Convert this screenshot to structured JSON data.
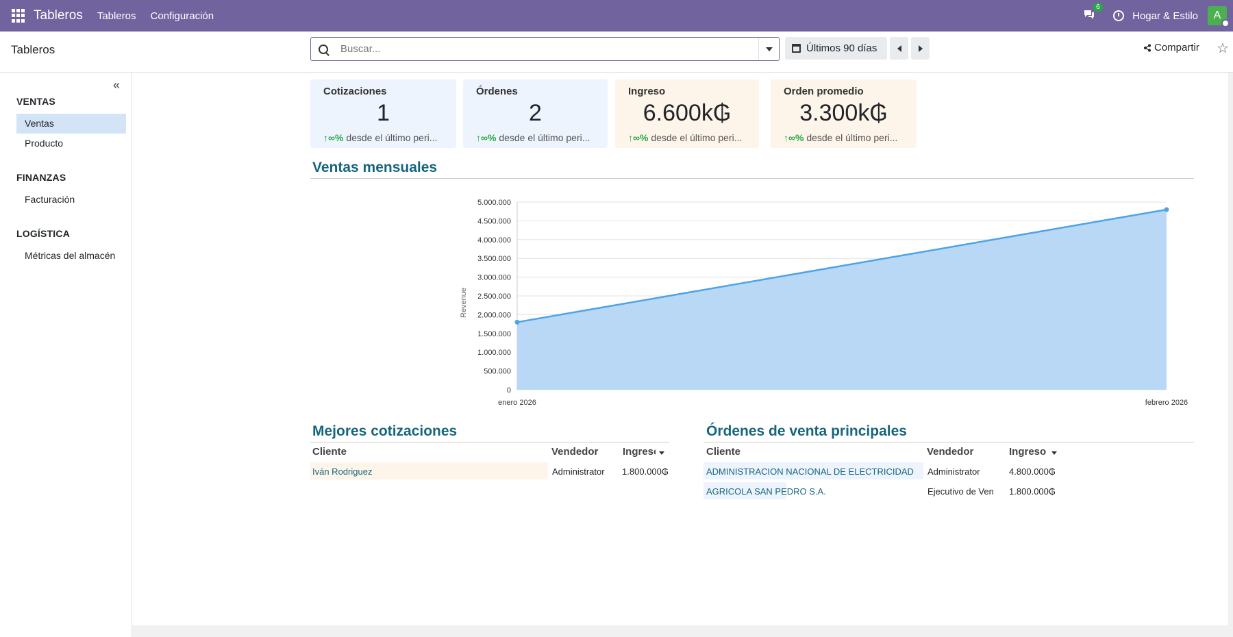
{
  "topbar": {
    "app_title": "Tableros",
    "nav": [
      "Tableros",
      "Configuración"
    ],
    "chat_count": "6",
    "company": "Hogar & Estilo",
    "avatar_letter": "A"
  },
  "controlbar": {
    "breadcrumb": "Tableros",
    "search_placeholder": "Buscar...",
    "date_filter": "Últimos 90 días",
    "share_label": "Compartir"
  },
  "sidebar": {
    "sections": [
      {
        "title": "VENTAS",
        "items": [
          "Ventas",
          "Producto"
        ]
      },
      {
        "title": "FINANZAS",
        "items": [
          "Facturación"
        ]
      },
      {
        "title": "LOGÍSTICA",
        "items": [
          "Métricas del almacén"
        ]
      }
    ],
    "active_item": "Ventas"
  },
  "kpis": [
    {
      "title": "Cotizaciones",
      "value": "1",
      "trend": "∞%",
      "trend_text": "desde el último peri..."
    },
    {
      "title": "Órdenes",
      "value": "2",
      "trend": "∞%",
      "trend_text": "desde el último peri..."
    },
    {
      "title": "Ingreso",
      "value": "6.600k₲",
      "trend": "∞%",
      "trend_text": "desde el último peri..."
    },
    {
      "title": "Orden promedio",
      "value": "3.300k₲",
      "trend": "∞%",
      "trend_text": "desde el último peri..."
    }
  ],
  "chart_section_title": "Ventas mensuales",
  "chart_data": {
    "type": "area",
    "x": [
      "enero 2026",
      "febrero 2026"
    ],
    "series": [
      {
        "values": [
          1800000,
          4800000
        ]
      }
    ],
    "ylabel": "Revenue",
    "ylim": [
      0,
      5000000
    ],
    "yticks": [
      "0",
      "500.000",
      "1.000.000",
      "1.500.000",
      "2.000.000",
      "2.500.000",
      "3.000.000",
      "3.500.000",
      "4.000.000",
      "4.500.000",
      "5.000.000"
    ],
    "grid": true,
    "color": "#4ea3e8"
  },
  "quotes_table": {
    "title": "Mejores cotizaciones",
    "headers": [
      "Cliente",
      "Vendedor",
      "Ingreso"
    ],
    "rows": [
      {
        "cliente": "Iván Rodriguez",
        "vendedor": "Administrator",
        "ingreso": "1.800.000₲"
      }
    ]
  },
  "orders_table": {
    "title": "Órdenes de venta principales",
    "headers": [
      "Cliente",
      "Vendedor",
      "Ingreso"
    ],
    "rows": [
      {
        "cliente": "ADMINISTRACION NACIONAL DE ELECTRICIDAD",
        "vendedor": "Administrator",
        "ingreso": "4.800.000₲"
      },
      {
        "cliente": "AGRICOLA SAN PEDRO S.A.",
        "vendedor": "Ejecutivo de Ven",
        "ingreso": "1.800.000₲"
      }
    ]
  },
  "colors": {
    "brand": "#71639e",
    "accent_title": "#17657d",
    "positive": "#28a745",
    "kpi_blue": "#edf4fd",
    "kpi_orange": "#fdf4ea"
  }
}
